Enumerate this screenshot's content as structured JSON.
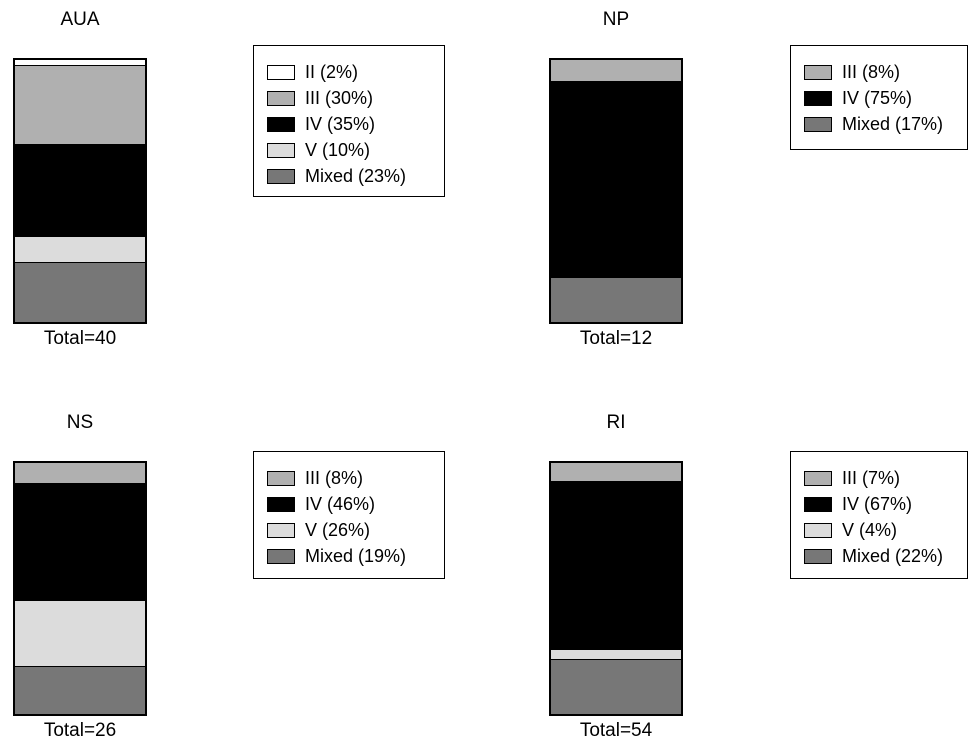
{
  "chart_data": [
    {
      "type": "bar",
      "stacked": true,
      "title": "AUA",
      "total_label": "Total=40",
      "colors": {
        "II": "#ffffff",
        "III": "#b0b0b0",
        "IV": "#000000",
        "V": "#dcdcdc",
        "Mixed": "#777777"
      },
      "series": [
        {
          "name": "II",
          "value": 2,
          "legend": "II (2%)"
        },
        {
          "name": "III",
          "value": 30,
          "legend": "III (30%)"
        },
        {
          "name": "IV",
          "value": 35,
          "legend": "IV (35%)"
        },
        {
          "name": "V",
          "value": 10,
          "legend": "V (10%)"
        },
        {
          "name": "Mixed",
          "value": 23,
          "legend": "Mixed (23%)"
        }
      ]
    },
    {
      "type": "bar",
      "stacked": true,
      "title": "NP",
      "total_label": "Total=12",
      "colors": {
        "III": "#b0b0b0",
        "IV": "#000000",
        "Mixed": "#777777"
      },
      "series": [
        {
          "name": "III",
          "value": 8,
          "legend": "III (8%)"
        },
        {
          "name": "IV",
          "value": 75,
          "legend": "IV (75%)"
        },
        {
          "name": "Mixed",
          "value": 17,
          "legend": "Mixed (17%)"
        }
      ]
    },
    {
      "type": "bar",
      "stacked": true,
      "title": "NS",
      "total_label": "Total=26",
      "colors": {
        "III": "#b0b0b0",
        "IV": "#000000",
        "V": "#dcdcdc",
        "Mixed": "#777777"
      },
      "series": [
        {
          "name": "III",
          "value": 8,
          "legend": "III (8%)"
        },
        {
          "name": "IV",
          "value": 46,
          "legend": "IV (46%)"
        },
        {
          "name": "V",
          "value": 26,
          "legend": "V (26%)"
        },
        {
          "name": "Mixed",
          "value": 19,
          "legend": "Mixed (19%)"
        }
      ]
    },
    {
      "type": "bar",
      "stacked": true,
      "title": "RI",
      "total_label": "Total=54",
      "colors": {
        "III": "#b0b0b0",
        "IV": "#000000",
        "V": "#dcdcdc",
        "Mixed": "#777777"
      },
      "series": [
        {
          "name": "III",
          "value": 7,
          "legend": "III (7%)"
        },
        {
          "name": "IV",
          "value": 67,
          "legend": "IV (67%)"
        },
        {
          "name": "V",
          "value": 4,
          "legend": "V (4%)"
        },
        {
          "name": "Mixed",
          "value": 22,
          "legend": "Mixed (22%)"
        }
      ]
    }
  ]
}
